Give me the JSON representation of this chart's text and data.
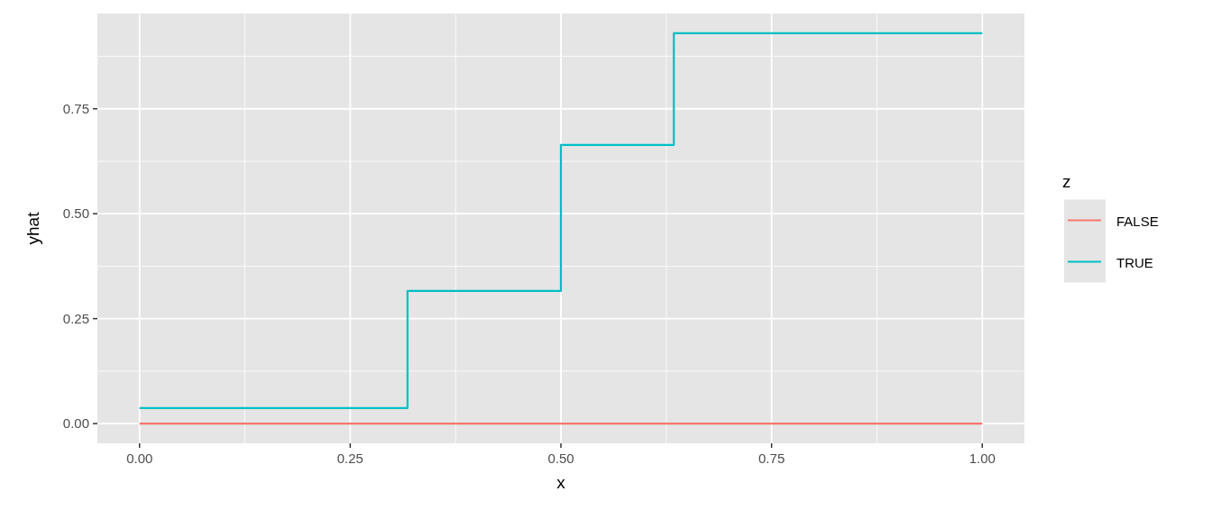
{
  "chart_data": {
    "type": "step",
    "xlabel": "x",
    "ylabel": "yhat",
    "legend_title": "z",
    "legend": "right",
    "xlim": [
      -0.05,
      1.05
    ],
    "xticks": [
      {
        "value": 0,
        "label": "0.00"
      },
      0.25,
      {
        "value": 0.5,
        "label": "0.50"
      },
      0.75,
      {
        "value": 1,
        "label": "1.00"
      }
    ],
    "ylim": [
      -0.047,
      0.977
    ],
    "yticks": [
      {
        "value": 0,
        "label": "0.00"
      },
      0.25,
      {
        "value": 0.5,
        "label": "0.50"
      },
      0.75
    ],
    "grid": true,
    "series": [
      {
        "name": "FALSE",
        "color": "#f8766d",
        "x": [
          0,
          1
        ],
        "values": [
          0,
          0
        ]
      },
      {
        "name": "TRUE",
        "color": "#00bfc4",
        "x": [
          0,
          0.318,
          0.5,
          0.634,
          1
        ],
        "values": [
          0.037,
          0.316,
          0.664,
          0.93,
          0.93
        ]
      }
    ]
  }
}
